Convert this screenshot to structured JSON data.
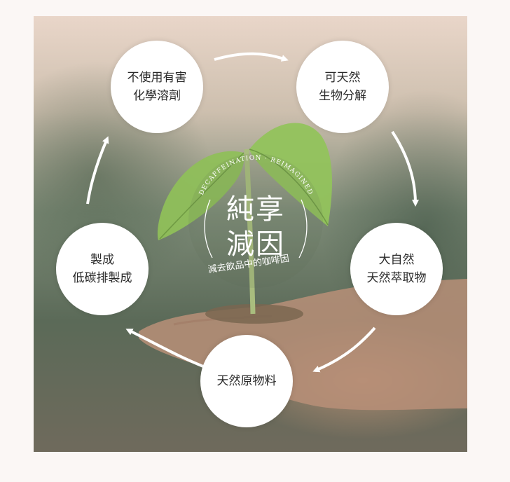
{
  "center": {
    "title_line1": "純享",
    "title_line2": "減因",
    "arc_text": "DECAFFEINATION · REIMAGINED",
    "subtitle": "減去飲品中的咖啡因"
  },
  "cycle": [
    {
      "id": "no-chemicals",
      "lines": [
        "不使用有害",
        "化學溶劑"
      ]
    },
    {
      "id": "biodegradable",
      "lines": [
        "可天然",
        "生物分解"
      ]
    },
    {
      "id": "natural-extract",
      "lines": [
        "大自然",
        "天然萃取物"
      ]
    },
    {
      "id": "natural-materials",
      "lines": [
        "天然原物料"
      ]
    },
    {
      "id": "low-carbon",
      "lines": [
        "製成",
        "低碳排製成"
      ]
    }
  ],
  "colors": {
    "page_bg": "#fbf7f5",
    "circle_fill": "#ffffff",
    "arrow": "#ffffff",
    "leaf": "#8fbf5a"
  }
}
